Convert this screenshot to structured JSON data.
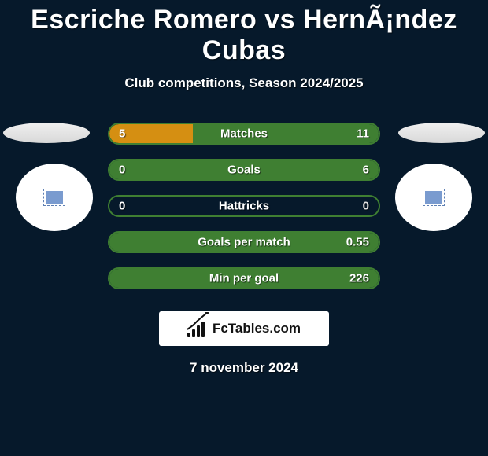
{
  "title": "Escriche Romero vs HernÃ¡ndez Cubas",
  "subtitle": "Club competitions, Season 2024/2025",
  "date": "7 november 2024",
  "brand": "FcTables.com",
  "colors": {
    "bg": "#06192b",
    "player1": "#d58f12",
    "player2": "#3f7f32",
    "bar_border": "#3f7f32"
  },
  "stats": [
    {
      "label": "Matches",
      "left_val": "5",
      "right_val": "11",
      "left_pct": 31,
      "right_pct": 69,
      "right_val_color": "#ffffff"
    },
    {
      "label": "Goals",
      "left_val": "0",
      "right_val": "6",
      "left_pct": 0,
      "right_pct": 100,
      "right_val_color": "#ffffff"
    },
    {
      "label": "Hattricks",
      "left_val": "0",
      "right_val": "0",
      "left_pct": 0,
      "right_pct": 0,
      "right_val_color": "#e0e0e0"
    },
    {
      "label": "Goals per match",
      "left_val": "",
      "right_val": "0.55",
      "left_pct": 0,
      "right_pct": 100,
      "right_val_color": "#ffffff"
    },
    {
      "label": "Min per goal",
      "left_val": "",
      "right_val": "226",
      "left_pct": 0,
      "right_pct": 100,
      "right_val_color": "#ffffff"
    }
  ]
}
